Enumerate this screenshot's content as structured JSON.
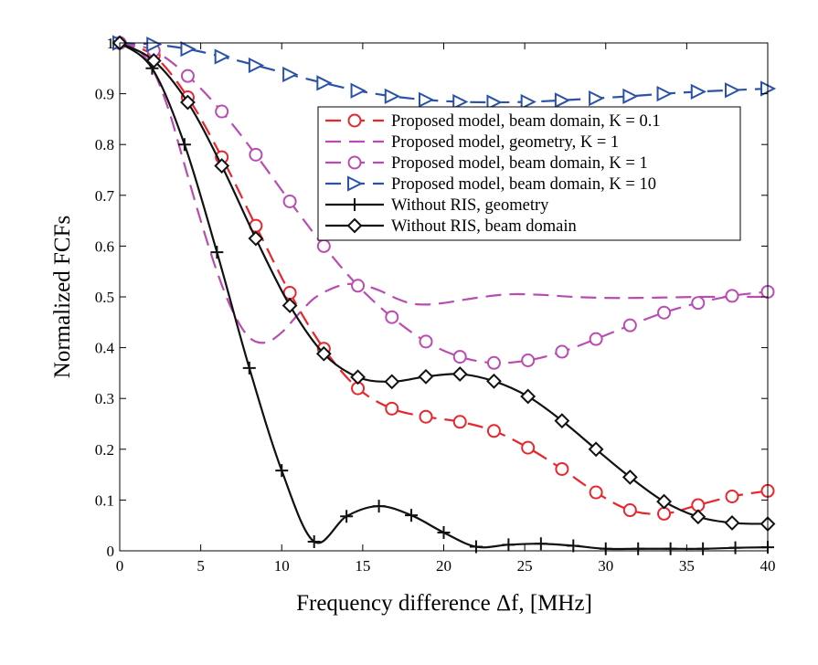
{
  "chart_data": {
    "type": "line",
    "xlabel": "Frequency difference Δf, [MHz]",
    "ylabel": "Normalized FCFs",
    "xlim": [
      0,
      40
    ],
    "ylim": [
      0,
      1
    ],
    "xticks": [
      "0",
      "5",
      "10",
      "15",
      "20",
      "25",
      "30",
      "35",
      "40"
    ],
    "yticks": [
      "0",
      "0.1",
      "0.2",
      "0.3",
      "0.4",
      "0.5",
      "0.6",
      "0.7",
      "0.8",
      "0.9",
      "1"
    ],
    "grid": false,
    "legend_position": "upper-right",
    "series": [
      {
        "name": "Proposed model, beam domain, K = 0.1",
        "color": "#e8262b",
        "dash": "dashed",
        "marker": "circle",
        "x": [
          0,
          2.1,
          4.2,
          6.3,
          8.4,
          10.5,
          12.6,
          14.7,
          16.8,
          18.9,
          21,
          23.1,
          25.2,
          27.3,
          29.4,
          31.5,
          33.6,
          35.7,
          37.8,
          40
        ],
        "y": [
          1.0,
          0.975,
          0.893,
          0.775,
          0.64,
          0.508,
          0.398,
          0.32,
          0.28,
          0.264,
          0.254,
          0.236,
          0.203,
          0.161,
          0.115,
          0.08,
          0.073,
          0.09,
          0.107,
          0.118
        ]
      },
      {
        "name": "Proposed model, geometry, K = 1",
        "color": "#b94cb1",
        "dash": "dashed",
        "marker": "none",
        "x": [
          0,
          1,
          2,
          3,
          4,
          5,
          6,
          7,
          8,
          9,
          10,
          11,
          12,
          13,
          14,
          15,
          16,
          17,
          18,
          19,
          20,
          22,
          24,
          26,
          28,
          30,
          32,
          34,
          36,
          38,
          40
        ],
        "y": [
          1.0,
          0.99,
          0.95,
          0.87,
          0.76,
          0.65,
          0.55,
          0.47,
          0.42,
          0.41,
          0.43,
          0.465,
          0.497,
          0.515,
          0.525,
          0.523,
          0.513,
          0.498,
          0.487,
          0.485,
          0.488,
          0.498,
          0.505,
          0.504,
          0.5,
          0.498,
          0.498,
          0.499,
          0.5,
          0.5,
          0.5
        ]
      },
      {
        "name": "Proposed model, beam domain, K = 1",
        "color": "#b94cb1",
        "dash": "dashed",
        "marker": "circle",
        "x": [
          0,
          2.1,
          4.2,
          6.3,
          8.4,
          10.5,
          12.6,
          14.7,
          16.8,
          18.9,
          21,
          23.1,
          25.2,
          27.3,
          29.4,
          31.5,
          33.6,
          35.7,
          37.8,
          40
        ],
        "y": [
          1.0,
          0.985,
          0.935,
          0.865,
          0.78,
          0.688,
          0.6,
          0.522,
          0.46,
          0.412,
          0.382,
          0.37,
          0.375,
          0.392,
          0.417,
          0.444,
          0.469,
          0.488,
          0.502,
          0.51
        ]
      },
      {
        "name": "Proposed model, beam domain, K = 10",
        "color": "#2a52a6",
        "dash": "dashed",
        "marker": "triangle-right",
        "x": [
          0,
          2.1,
          4.2,
          6.3,
          8.4,
          10.5,
          12.6,
          14.7,
          16.8,
          18.9,
          21,
          23.1,
          25.2,
          27.3,
          29.4,
          31.5,
          33.6,
          35.7,
          37.8,
          40
        ],
        "y": [
          1.0,
          0.997,
          0.988,
          0.973,
          0.956,
          0.938,
          0.921,
          0.906,
          0.895,
          0.888,
          0.884,
          0.883,
          0.884,
          0.887,
          0.891,
          0.895,
          0.9,
          0.904,
          0.907,
          0.91
        ]
      },
      {
        "name": "Without RIS, geometry",
        "color": "#111111",
        "dash": "solid",
        "marker": "plus",
        "x": [
          0,
          2,
          4,
          6,
          8,
          10,
          12,
          14,
          16,
          18,
          20,
          22,
          24,
          26,
          28,
          30,
          32,
          34,
          36,
          38,
          40
        ],
        "y": [
          1.0,
          0.95,
          0.8,
          0.588,
          0.36,
          0.158,
          0.018,
          0.068,
          0.088,
          0.07,
          0.036,
          0.008,
          0.012,
          0.014,
          0.01,
          0.004,
          0.004,
          0.004,
          0.004,
          0.006,
          0.007
        ]
      },
      {
        "name": "Without RIS, beam domain",
        "color": "#111111",
        "dash": "solid",
        "marker": "diamond",
        "x": [
          0,
          2.1,
          4.2,
          6.3,
          8.4,
          10.5,
          12.6,
          14.7,
          16.8,
          18.9,
          21,
          23.1,
          25.2,
          27.3,
          29.4,
          31.5,
          33.6,
          35.7,
          37.8,
          40
        ],
        "y": [
          1.0,
          0.965,
          0.883,
          0.758,
          0.615,
          0.483,
          0.388,
          0.342,
          0.333,
          0.343,
          0.348,
          0.334,
          0.304,
          0.256,
          0.2,
          0.145,
          0.097,
          0.067,
          0.055,
          0.053
        ]
      }
    ]
  }
}
